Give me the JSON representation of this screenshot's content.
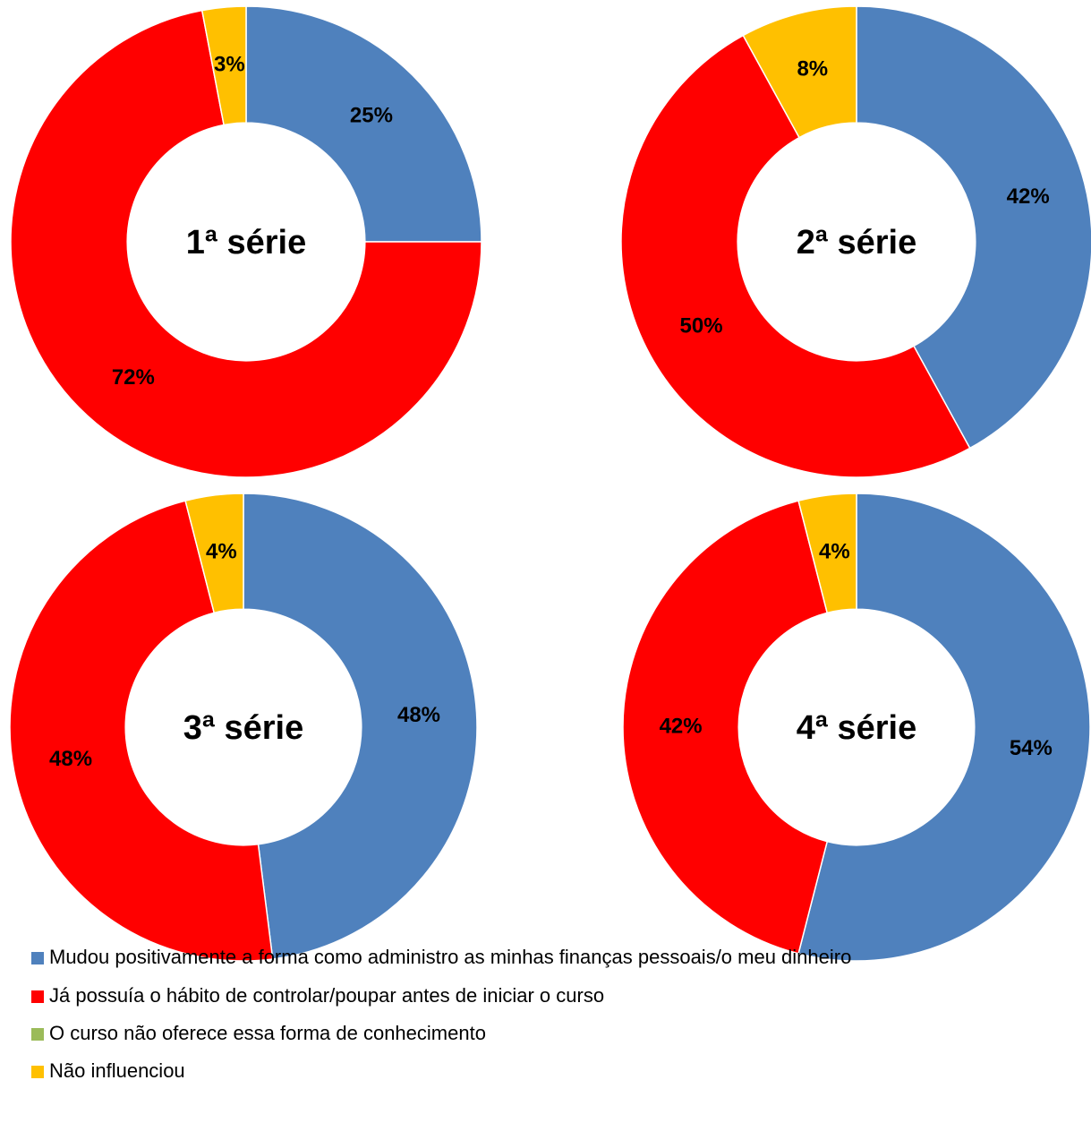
{
  "chart_data": [
    {
      "type": "donut",
      "title": "1ª série",
      "values": [
        25,
        72,
        0,
        3
      ],
      "value_labels": [
        "25%",
        "72%",
        null,
        "3%"
      ]
    },
    {
      "type": "donut",
      "title": "2ª série",
      "values": [
        42,
        50,
        0,
        8
      ],
      "value_labels": [
        "42%",
        "50%",
        null,
        "8%"
      ]
    },
    {
      "type": "donut",
      "title": "3ª série",
      "values": [
        48,
        48,
        0,
        4
      ],
      "value_labels": [
        "48%",
        "48%",
        null,
        "4%"
      ]
    },
    {
      "type": "donut",
      "title": "4ª série",
      "values": [
        54,
        42,
        0,
        4
      ],
      "value_labels": [
        "54%",
        "42%",
        null,
        "4%"
      ]
    }
  ],
  "legend": {
    "labels": [
      "Mudou positivamente a forma como administro as minhas finanças pessoais/o meu dinheiro",
      "Já possuía o hábito de controlar/poupar antes de iniciar o curso",
      "O curso não oferece essa forma de conhecimento",
      "Não influenciou"
    ],
    "colors": [
      "#4f81bd",
      "#ff0000",
      "#9bbb59",
      "#ffc000"
    ]
  }
}
